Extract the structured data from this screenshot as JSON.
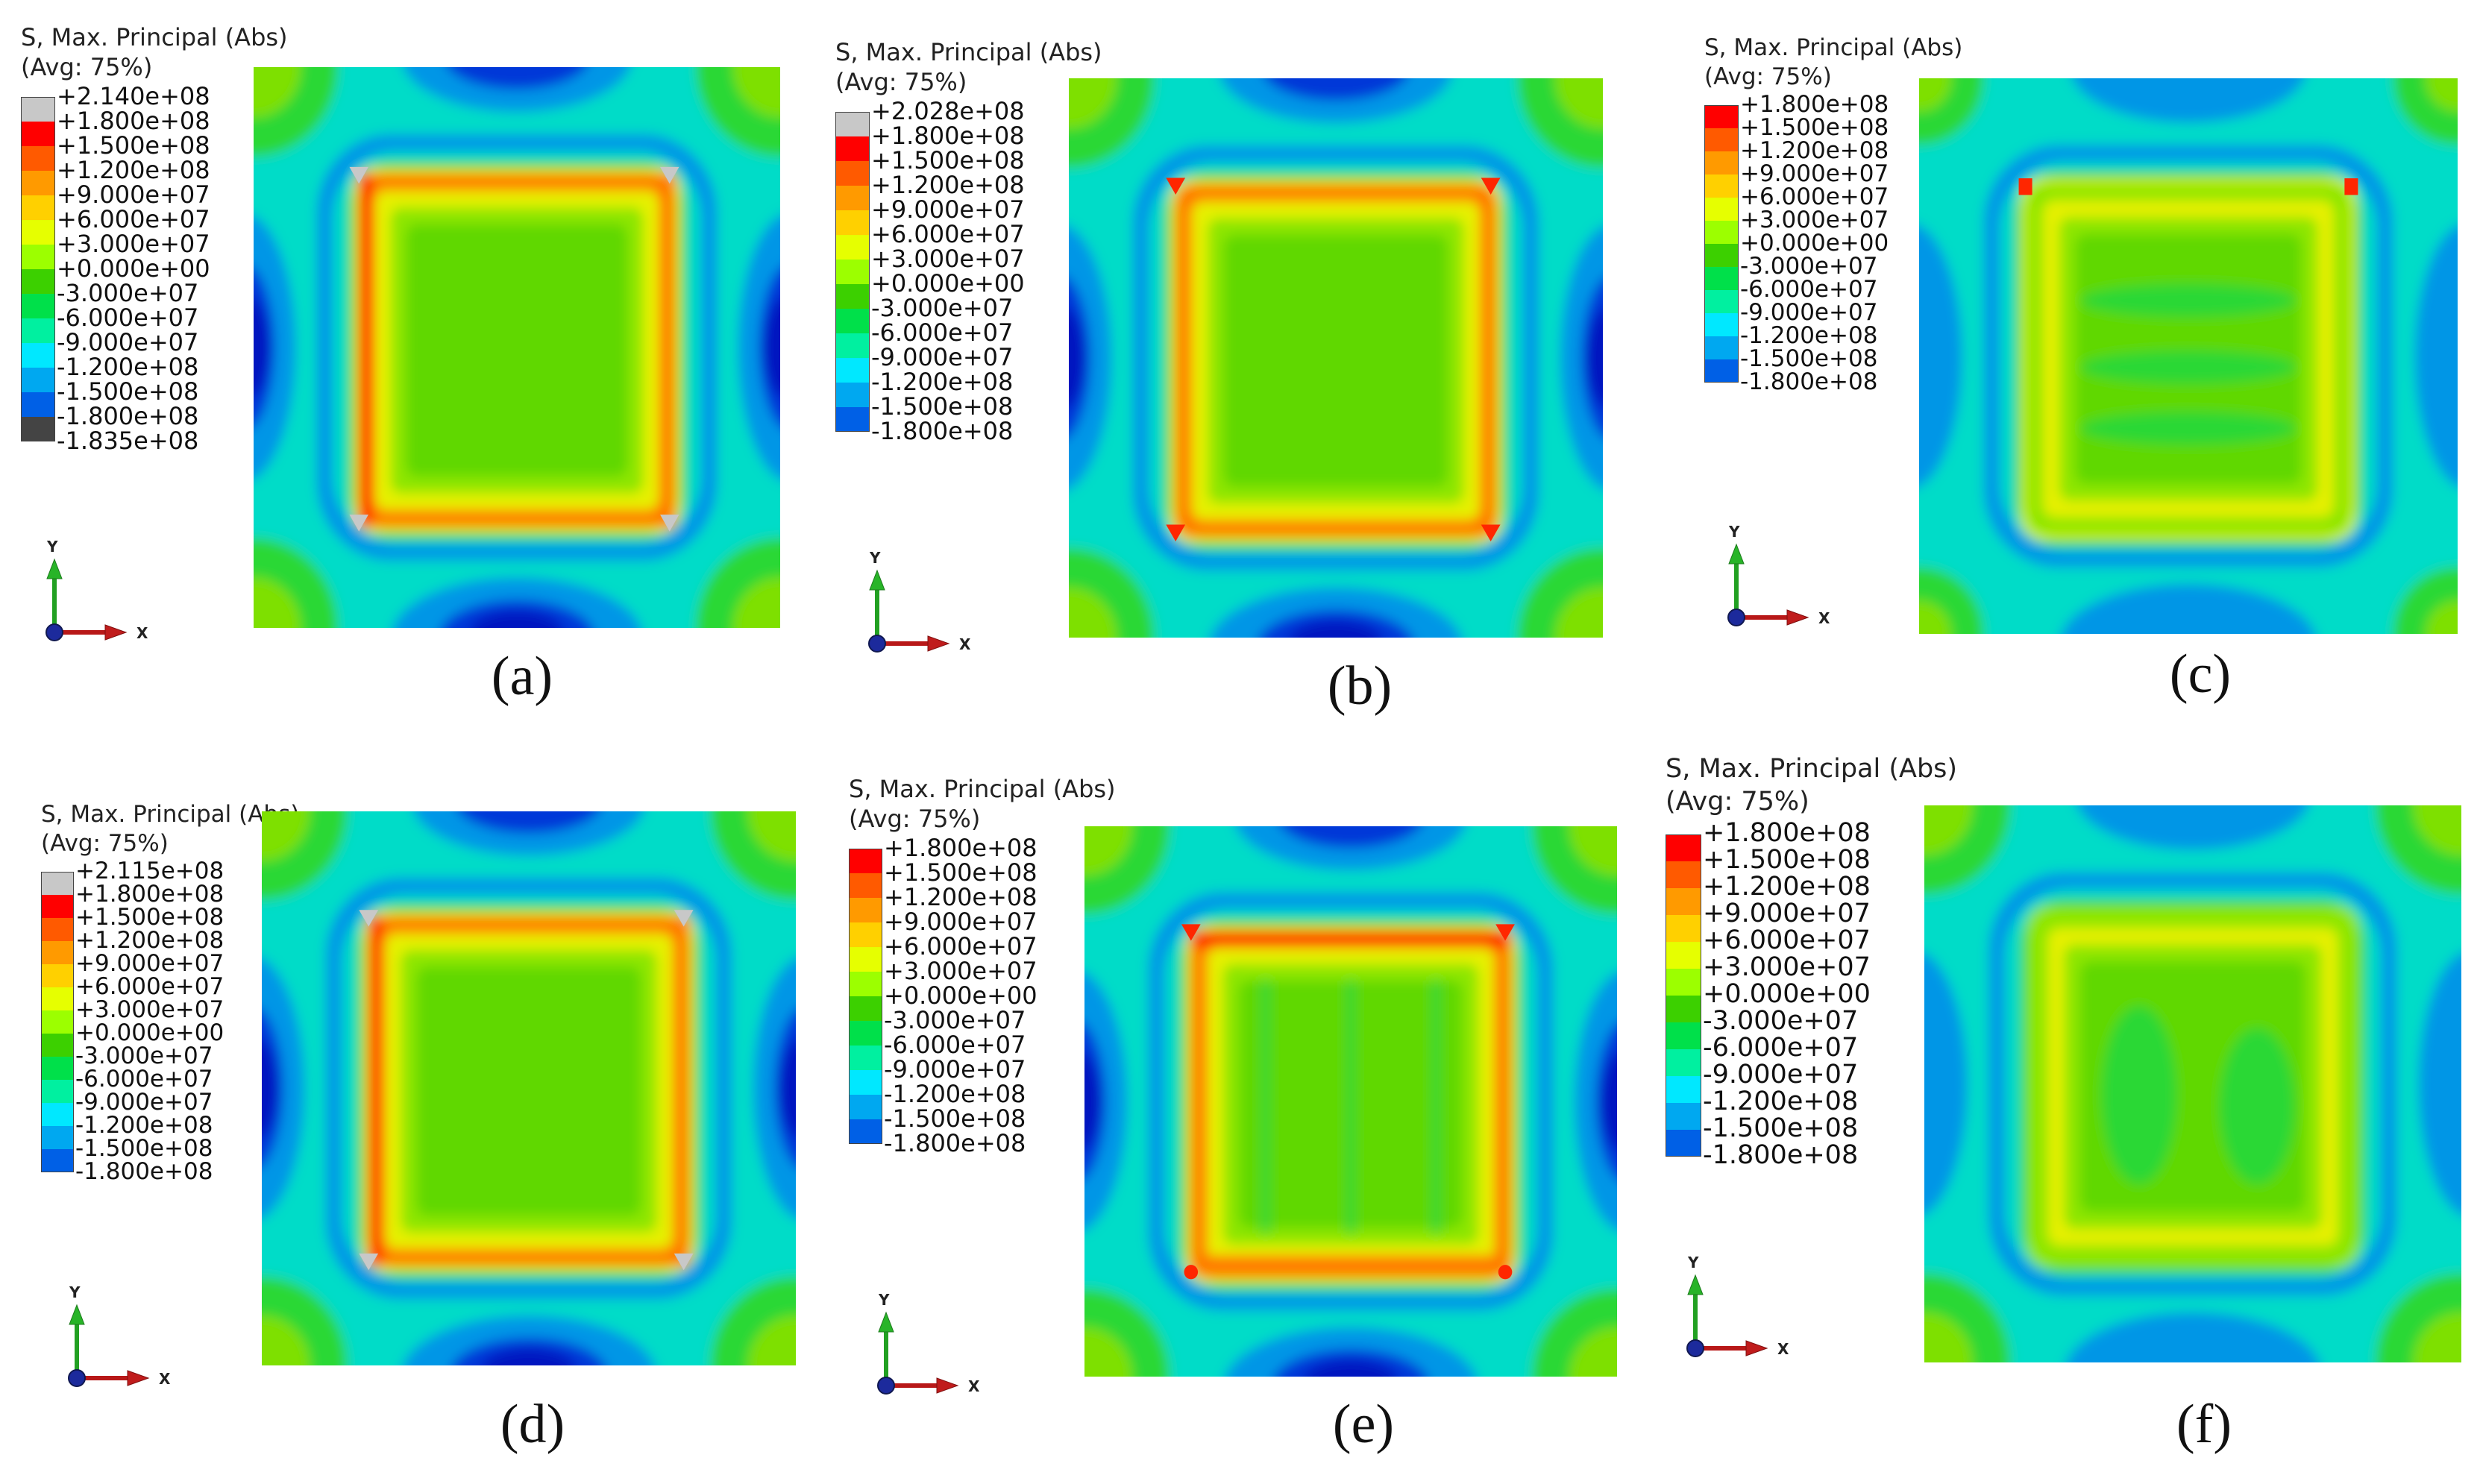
{
  "title_line1": "S, Max. Principal (Abs)",
  "title_line2": "(Avg: 75%)",
  "axis": {
    "x": "X",
    "y": "Y"
  },
  "colors": {
    "grey": "#c8c8c8",
    "dark": "#444444",
    "ramp": [
      "#ff0000",
      "#ff5a00",
      "#ff9a00",
      "#ffd000",
      "#e6ff00",
      "#9cff00",
      "#3cd000",
      "#00e04a",
      "#00f0a0",
      "#00e8ff",
      "#00a8f0",
      "#0060e6",
      "#0000ff"
    ],
    "plot": {
      "teal": "#00dcc8",
      "green": "#2cd834",
      "lblue": "#0096e6",
      "dblue": "#0038d8",
      "navy": "#0018c0",
      "orange": "#ff7a00",
      "red": "#ff2600",
      "yellow": "#e6f000",
      "lgreen": "#8ee600",
      "grass": "#60d800"
    }
  },
  "panels": [
    {
      "id": "a",
      "caption": "(a)",
      "variant": "large",
      "ticks": [
        "+2.140e+08",
        "+1.800e+08",
        "+1.500e+08",
        "+1.200e+08",
        "+9.000e+07",
        "+6.000e+07",
        "+3.000e+07",
        "+0.000e+00",
        "-3.000e+07",
        "-6.000e+07",
        "-9.000e+07",
        "-1.200e+08",
        "-1.500e+08",
        "-1.800e+08",
        "-1.835e+08"
      ]
    },
    {
      "id": "b",
      "caption": "(b)",
      "variant": "corner",
      "ticks": [
        "+2.028e+08",
        "+1.800e+08",
        "+1.500e+08",
        "+1.200e+08",
        "+9.000e+07",
        "+6.000e+07",
        "+3.000e+07",
        "+0.000e+00",
        "-3.000e+07",
        "-6.000e+07",
        "-9.000e+07",
        "-1.200e+08",
        "-1.500e+08",
        "-1.800e+08"
      ]
    },
    {
      "id": "c",
      "caption": "(c)",
      "variant": "banded",
      "ticks": [
        "+1.800e+08",
        "+1.500e+08",
        "+1.200e+08",
        "+9.000e+07",
        "+6.000e+07",
        "+3.000e+07",
        "+0.000e+00",
        "-3.000e+07",
        "-6.000e+07",
        "-9.000e+07",
        "-1.200e+08",
        "-1.500e+08",
        "-1.800e+08"
      ]
    },
    {
      "id": "d",
      "caption": "(d)",
      "variant": "large",
      "ticks": [
        "+2.115e+08",
        "+1.800e+08",
        "+1.500e+08",
        "+1.200e+08",
        "+9.000e+07",
        "+6.000e+07",
        "+3.000e+07",
        "+0.000e+00",
        "-3.000e+07",
        "-6.000e+07",
        "-9.000e+07",
        "-1.200e+08",
        "-1.500e+08",
        "-1.800e+08"
      ]
    },
    {
      "id": "e",
      "caption": "(e)",
      "variant": "grid",
      "ticks": [
        "+1.800e+08",
        "+1.500e+08",
        "+1.200e+08",
        "+9.000e+07",
        "+6.000e+07",
        "+3.000e+07",
        "+0.000e+00",
        "-3.000e+07",
        "-6.000e+07",
        "-9.000e+07",
        "-1.200e+08",
        "-1.500e+08",
        "-1.800e+08"
      ]
    },
    {
      "id": "f",
      "caption": "(f)",
      "variant": "soft",
      "ticks": [
        "+1.800e+08",
        "+1.500e+08",
        "+1.200e+08",
        "+9.000e+07",
        "+6.000e+07",
        "+3.000e+07",
        "+0.000e+00",
        "-3.000e+07",
        "-6.000e+07",
        "-9.000e+07",
        "-1.200e+08",
        "-1.500e+08",
        "-1.800e+08"
      ]
    }
  ]
}
